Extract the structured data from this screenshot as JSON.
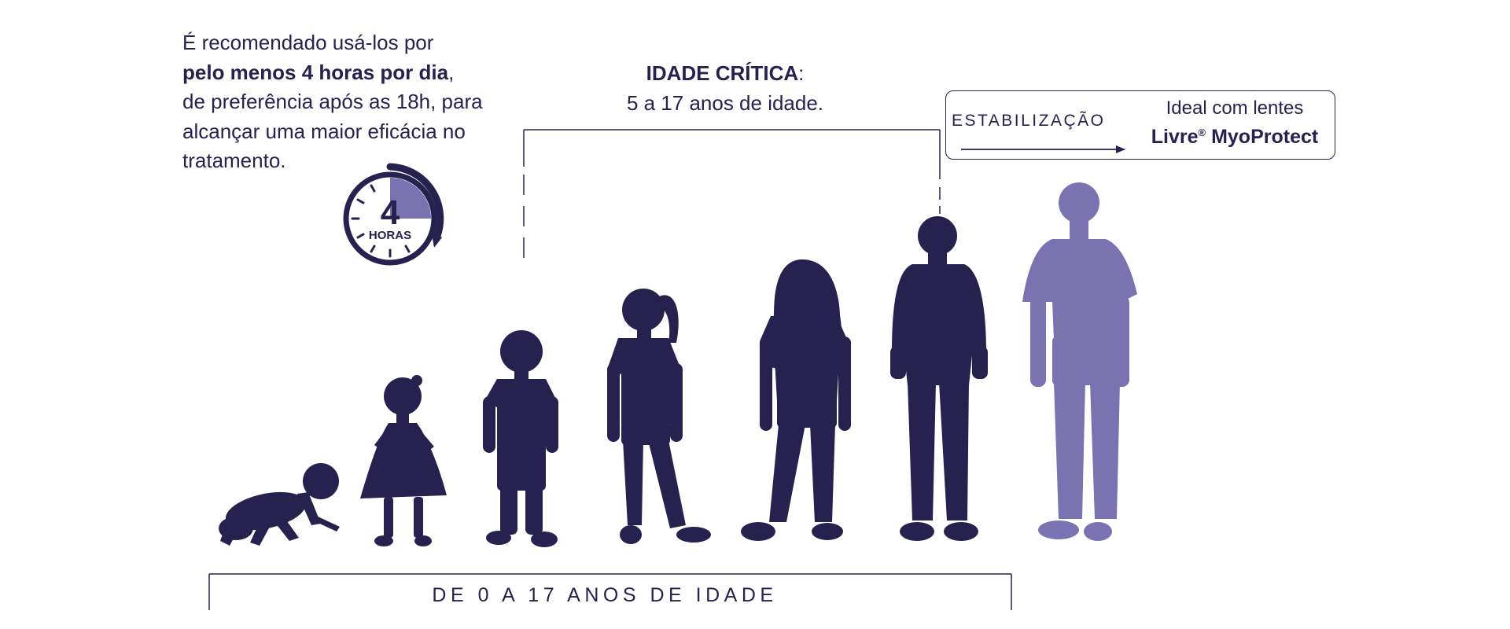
{
  "intro": {
    "line1": "É recomendado usá-los por",
    "line2_bold": "pelo menos 4 horas por dia",
    "line2_tail": ",",
    "line3": "de preferência após as 18h, para",
    "line4": "alcançar uma maior eficácia no",
    "line5": "tratamento."
  },
  "timer": {
    "number": "4",
    "unit": "HORAS",
    "filled_fraction": 0.25
  },
  "critical_age": {
    "title": "IDADE CRÍTICA",
    "title_suffix": ":",
    "subtitle": "5 a 17 anos de idade."
  },
  "stabilization": {
    "label": "ESTABILIZAÇÃO",
    "ideal_text": "Ideal com lentes",
    "brand": "Livre",
    "brand_mark": "®",
    "brand_product": "MyoProtect"
  },
  "age_range": {
    "label": "DE 0 A 17 ANOS DE IDADE"
  },
  "figures": [
    {
      "name": "crawling-baby-silhouette",
      "stage": "baby"
    },
    {
      "name": "toddler-girl-silhouette",
      "stage": "toddler"
    },
    {
      "name": "young-boy-silhouette",
      "stage": "child"
    },
    {
      "name": "girl-ponytail-silhouette",
      "stage": "child"
    },
    {
      "name": "preteen-girl-silhouette",
      "stage": "preteen"
    },
    {
      "name": "teen-boy-hoodie-silhouette",
      "stage": "teen"
    },
    {
      "name": "adult-boy-silhouette",
      "stage": "stabilized"
    }
  ],
  "colors": {
    "dark": "#26214f",
    "accent": "#7a72b1",
    "background": "#ffffff"
  }
}
